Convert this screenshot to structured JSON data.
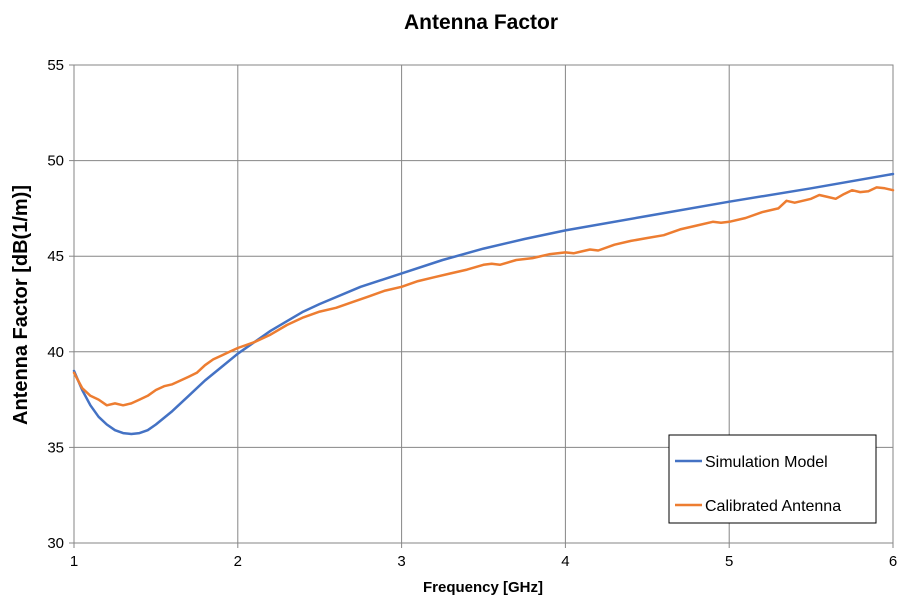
{
  "chart_data": {
    "type": "line",
    "title": "Antenna Factor",
    "xlabel": "Frequency [GHz]",
    "ylabel": "Antenna Factor [dB(1/m)]",
    "xlim": [
      1,
      6
    ],
    "ylim": [
      30,
      55
    ],
    "x_ticks": [
      "1",
      "2",
      "3",
      "4",
      "5",
      "6"
    ],
    "y_ticks": [
      "30",
      "35",
      "40",
      "45",
      "50",
      "55"
    ],
    "grid": true,
    "legend_position": "bottom-right",
    "series": [
      {
        "name": "Simulation Model",
        "color": "#4472C4",
        "x": [
          1.0,
          1.05,
          1.1,
          1.15,
          1.2,
          1.25,
          1.3,
          1.35,
          1.4,
          1.45,
          1.5,
          1.6,
          1.7,
          1.8,
          1.9,
          2.0,
          2.1,
          2.2,
          2.3,
          2.4,
          2.5,
          2.75,
          3.0,
          3.25,
          3.5,
          3.75,
          4.0,
          4.5,
          5.0,
          5.5,
          6.0
        ],
        "y": [
          39.0,
          38.0,
          37.2,
          36.6,
          36.2,
          35.9,
          35.75,
          35.7,
          35.75,
          35.9,
          36.2,
          36.9,
          37.7,
          38.5,
          39.2,
          39.9,
          40.5,
          41.1,
          41.6,
          42.1,
          42.5,
          43.4,
          44.1,
          44.8,
          45.4,
          45.9,
          46.35,
          47.1,
          47.85,
          48.55,
          49.3
        ]
      },
      {
        "name": "Calibrated Antenna",
        "color": "#ED7D31",
        "x": [
          1.0,
          1.05,
          1.1,
          1.15,
          1.2,
          1.25,
          1.3,
          1.35,
          1.4,
          1.45,
          1.5,
          1.55,
          1.6,
          1.65,
          1.7,
          1.75,
          1.8,
          1.85,
          1.9,
          1.95,
          2.0,
          2.1,
          2.2,
          2.3,
          2.4,
          2.5,
          2.6,
          2.7,
          2.8,
          2.9,
          3.0,
          3.1,
          3.2,
          3.3,
          3.4,
          3.5,
          3.55,
          3.6,
          3.7,
          3.8,
          3.9,
          4.0,
          4.05,
          4.1,
          4.15,
          4.2,
          4.3,
          4.4,
          4.5,
          4.6,
          4.7,
          4.8,
          4.9,
          4.95,
          5.0,
          5.1,
          5.2,
          5.3,
          5.35,
          5.4,
          5.5,
          5.55,
          5.6,
          5.65,
          5.7,
          5.75,
          5.8,
          5.85,
          5.9,
          5.95,
          6.0
        ],
        "y": [
          38.9,
          38.1,
          37.7,
          37.5,
          37.2,
          37.3,
          37.2,
          37.3,
          37.5,
          37.7,
          38.0,
          38.2,
          38.3,
          38.5,
          38.7,
          38.9,
          39.3,
          39.6,
          39.8,
          40.0,
          40.2,
          40.5,
          40.9,
          41.4,
          41.8,
          42.1,
          42.3,
          42.6,
          42.9,
          43.2,
          43.4,
          43.7,
          43.9,
          44.1,
          44.3,
          44.55,
          44.6,
          44.55,
          44.8,
          44.9,
          45.1,
          45.2,
          45.15,
          45.25,
          45.35,
          45.3,
          45.6,
          45.8,
          45.95,
          46.1,
          46.4,
          46.6,
          46.8,
          46.75,
          46.8,
          47.0,
          47.3,
          47.5,
          47.9,
          47.8,
          48.0,
          48.2,
          48.1,
          48.0,
          48.25,
          48.45,
          48.35,
          48.4,
          48.6,
          48.55,
          48.45
        ]
      }
    ]
  }
}
